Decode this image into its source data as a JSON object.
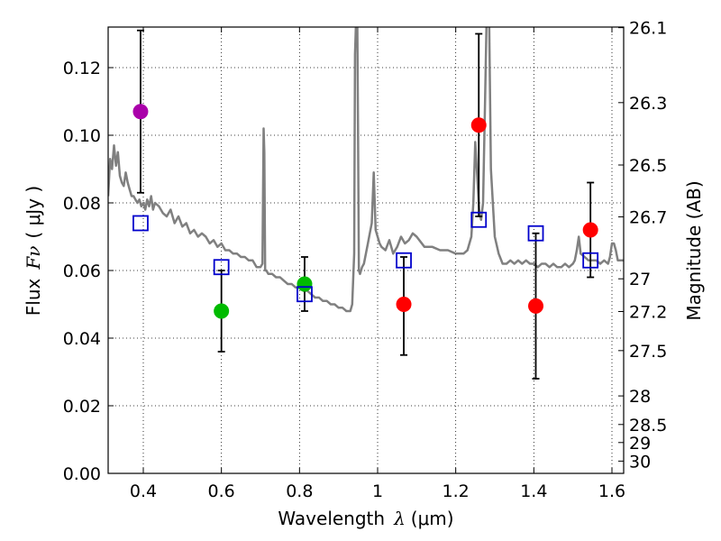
{
  "chart_data": {
    "type": "scatter",
    "xlabel_prefix": "Wavelength",
    "xlabel_symbol": "λ",
    "xlabel_unit": "(μm)",
    "ylabel_prefix": "Flux",
    "ylabel_symbol": "Fν",
    "ylabel_unit": "( μJy )",
    "ylabel_right": "Magnitude (AB)",
    "xlim": [
      0.31,
      1.63
    ],
    "ylim": [
      0.0,
      0.132
    ],
    "grid": true,
    "xticks": [
      0.4,
      0.6,
      0.8,
      1.0,
      1.2,
      1.4,
      1.6
    ],
    "xtick_labels": [
      "0.4",
      "0.6",
      "0.8",
      "1",
      "1.2",
      "1.4",
      "1.6"
    ],
    "yticks": [
      0.0,
      0.02,
      0.04,
      0.06,
      0.08,
      0.1,
      0.12
    ],
    "ytick_labels": [
      "0.00",
      "0.02",
      "0.04",
      "0.06",
      "0.08",
      "0.10",
      "0.12"
    ],
    "mag_ticks": [
      {
        "mag": 26.1,
        "label": "26.1"
      },
      {
        "mag": 26.3,
        "label": "26.3"
      },
      {
        "mag": 26.5,
        "label": "26.5"
      },
      {
        "mag": 26.7,
        "label": "26.7"
      },
      {
        "mag": 27.0,
        "label": "27"
      },
      {
        "mag": 27.2,
        "label": "27.2"
      },
      {
        "mag": 27.5,
        "label": "27.5"
      },
      {
        "mag": 28.0,
        "label": "28"
      },
      {
        "mag": 28.5,
        "label": "28.5"
      },
      {
        "mag": 29.0,
        "label": "29"
      },
      {
        "mag": 30.0,
        "label": "30"
      }
    ],
    "model_spectrum": {
      "color": "#808080",
      "x": [
        0.31,
        0.315,
        0.32,
        0.325,
        0.33,
        0.335,
        0.34,
        0.345,
        0.35,
        0.355,
        0.36,
        0.365,
        0.37,
        0.375,
        0.38,
        0.385,
        0.39,
        0.395,
        0.4,
        0.405,
        0.41,
        0.415,
        0.42,
        0.425,
        0.43,
        0.44,
        0.45,
        0.46,
        0.47,
        0.48,
        0.49,
        0.5,
        0.51,
        0.52,
        0.53,
        0.54,
        0.55,
        0.56,
        0.57,
        0.58,
        0.59,
        0.6,
        0.61,
        0.62,
        0.63,
        0.64,
        0.65,
        0.66,
        0.67,
        0.68,
        0.69,
        0.7,
        0.705,
        0.708,
        0.71,
        0.712,
        0.715,
        0.72,
        0.73,
        0.74,
        0.75,
        0.76,
        0.77,
        0.78,
        0.79,
        0.8,
        0.81,
        0.82,
        0.83,
        0.84,
        0.85,
        0.86,
        0.87,
        0.88,
        0.89,
        0.9,
        0.91,
        0.92,
        0.93,
        0.935,
        0.94,
        0.942,
        0.945,
        0.948,
        0.95,
        0.952,
        0.955,
        0.96,
        0.965,
        0.97,
        0.975,
        0.98,
        0.985,
        0.99,
        0.995,
        1.0,
        1.005,
        1.01,
        1.02,
        1.03,
        1.04,
        1.05,
        1.06,
        1.07,
        1.08,
        1.09,
        1.1,
        1.12,
        1.14,
        1.16,
        1.18,
        1.2,
        1.22,
        1.23,
        1.24,
        1.245,
        1.25,
        1.255,
        1.26,
        1.265,
        1.27,
        1.275,
        1.28,
        1.285,
        1.29,
        1.3,
        1.31,
        1.32,
        1.33,
        1.34,
        1.35,
        1.36,
        1.37,
        1.38,
        1.39,
        1.4,
        1.41,
        1.42,
        1.43,
        1.44,
        1.45,
        1.46,
        1.47,
        1.48,
        1.49,
        1.5,
        1.505,
        1.51,
        1.515,
        1.52,
        1.53,
        1.54,
        1.55,
        1.56,
        1.57,
        1.58,
        1.59,
        1.595,
        1.6,
        1.605,
        1.61,
        1.615,
        1.62,
        1.63
      ],
      "y": [
        0.082,
        0.093,
        0.09,
        0.097,
        0.091,
        0.095,
        0.088,
        0.086,
        0.085,
        0.089,
        0.086,
        0.084,
        0.082,
        0.082,
        0.081,
        0.08,
        0.081,
        0.079,
        0.08,
        0.078,
        0.081,
        0.079,
        0.082,
        0.078,
        0.08,
        0.079,
        0.077,
        0.076,
        0.078,
        0.074,
        0.076,
        0.073,
        0.074,
        0.071,
        0.072,
        0.07,
        0.071,
        0.07,
        0.068,
        0.069,
        0.067,
        0.068,
        0.066,
        0.066,
        0.065,
        0.065,
        0.064,
        0.064,
        0.063,
        0.063,
        0.061,
        0.061,
        0.062,
        0.102,
        0.095,
        0.06,
        0.06,
        0.059,
        0.059,
        0.058,
        0.058,
        0.057,
        0.056,
        0.056,
        0.055,
        0.055,
        0.054,
        0.054,
        0.053,
        0.052,
        0.052,
        0.051,
        0.051,
        0.05,
        0.05,
        0.049,
        0.049,
        0.048,
        0.048,
        0.05,
        0.065,
        0.124,
        0.135,
        0.132,
        0.1,
        0.06,
        0.059,
        0.061,
        0.062,
        0.065,
        0.068,
        0.071,
        0.074,
        0.089,
        0.072,
        0.07,
        0.068,
        0.067,
        0.066,
        0.069,
        0.065,
        0.067,
        0.07,
        0.068,
        0.069,
        0.071,
        0.07,
        0.067,
        0.067,
        0.066,
        0.066,
        0.065,
        0.065,
        0.066,
        0.07,
        0.08,
        0.098,
        0.088,
        0.078,
        0.075,
        0.08,
        0.11,
        0.14,
        0.14,
        0.09,
        0.07,
        0.065,
        0.062,
        0.062,
        0.063,
        0.062,
        0.063,
        0.062,
        0.063,
        0.062,
        0.062,
        0.061,
        0.062,
        0.062,
        0.061,
        0.062,
        0.061,
        0.061,
        0.062,
        0.061,
        0.062,
        0.063,
        0.066,
        0.07,
        0.065,
        0.064,
        0.063,
        0.063,
        0.063,
        0.062,
        0.063,
        0.062,
        0.064,
        0.068,
        0.068,
        0.066,
        0.063,
        0.063,
        0.063
      ]
    },
    "series": [
      {
        "name": "magenta point",
        "color": "#aa00aa",
        "points": [
          {
            "x": 0.393,
            "y": 0.107,
            "err_lo": 0.083,
            "err_hi": 0.131
          }
        ]
      },
      {
        "name": "green points",
        "color": "#00bb00",
        "points": [
          {
            "x": 0.6,
            "y": 0.048,
            "err_lo": 0.036,
            "err_hi": 0.06
          },
          {
            "x": 0.813,
            "y": 0.056,
            "err_lo": 0.048,
            "err_hi": 0.064
          }
        ]
      },
      {
        "name": "red points",
        "color": "#ff0000",
        "points": [
          {
            "x": 1.067,
            "y": 0.05,
            "err_lo": 0.035,
            "err_hi": 0.064
          },
          {
            "x": 1.259,
            "y": 0.103,
            "err_lo": 0.076,
            "err_hi": 0.13
          },
          {
            "x": 1.405,
            "y": 0.0495,
            "err_lo": 0.028,
            "err_hi": 0.071
          },
          {
            "x": 1.545,
            "y": 0.072,
            "err_lo": 0.058,
            "err_hi": 0.086
          }
        ]
      },
      {
        "name": "model band fluxes",
        "color": "#0000cc",
        "marker": "open-square",
        "points": [
          {
            "x": 0.393,
            "y": 0.074
          },
          {
            "x": 0.6,
            "y": 0.061
          },
          {
            "x": 0.813,
            "y": 0.053
          },
          {
            "x": 1.067,
            "y": 0.063
          },
          {
            "x": 1.259,
            "y": 0.075
          },
          {
            "x": 1.405,
            "y": 0.071
          },
          {
            "x": 1.545,
            "y": 0.063
          }
        ]
      }
    ]
  }
}
